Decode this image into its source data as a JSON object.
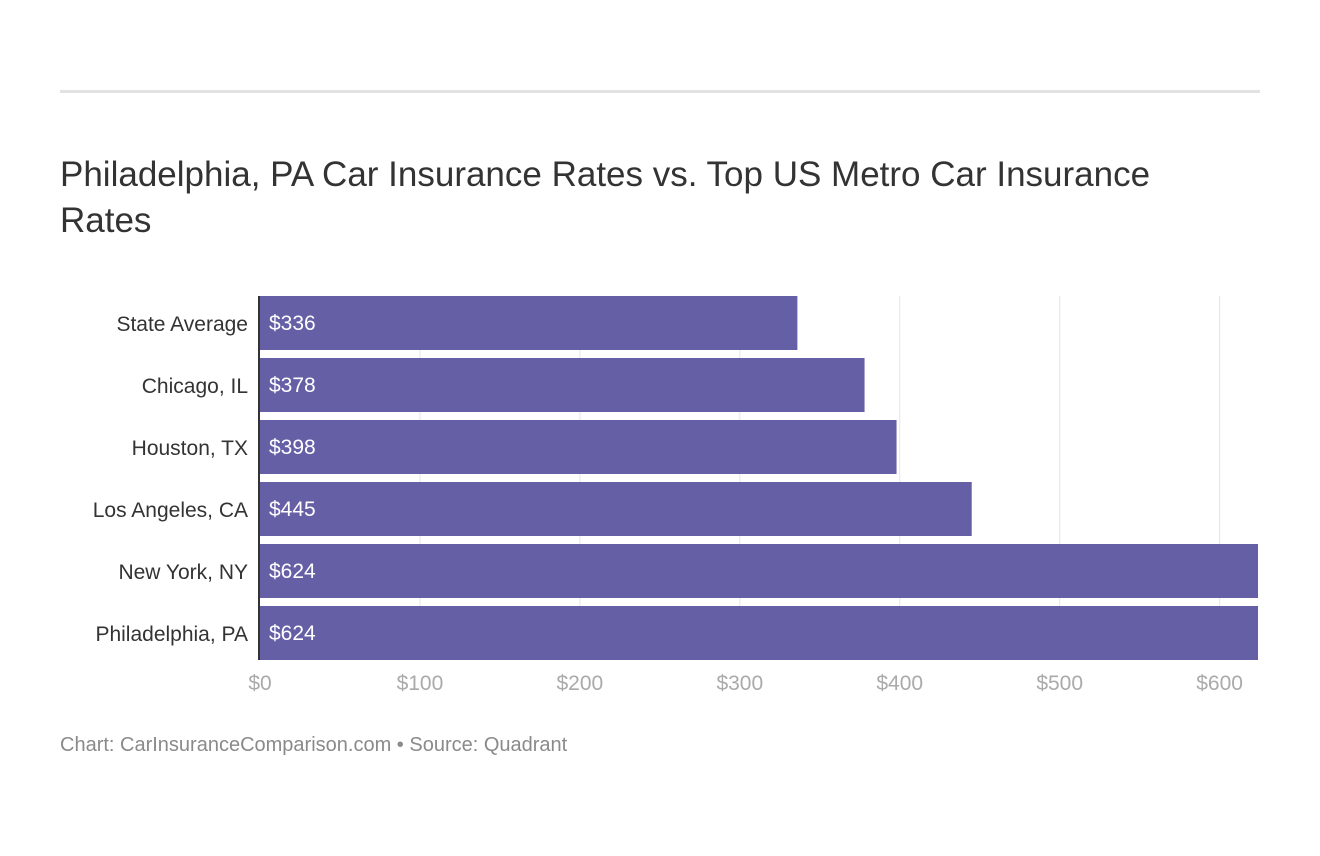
{
  "title": "Philadelphia, PA Car Insurance Rates vs. Top US Metro Car Insurance Rates",
  "footer": "Chart: CarInsuranceComparison.com • Source: Quadrant",
  "colors": {
    "bar": "#655fa6",
    "grid": "#e6e6e6",
    "axis": "#333333",
    "tick": "#aaaaaa"
  },
  "chart_data": {
    "type": "bar",
    "orientation": "horizontal",
    "title": "Philadelphia, PA Car Insurance Rates vs. Top US Metro Car Insurance Rates",
    "categories": [
      "State Average",
      "Chicago, IL",
      "Houston, TX",
      "Los Angeles, CA",
      "New York, NY",
      "Philadelphia, PA"
    ],
    "values": [
      336,
      378,
      398,
      445,
      624,
      624
    ],
    "value_labels": [
      "$336",
      "$378",
      "$398",
      "$445",
      "$624",
      "$624"
    ],
    "xticks": [
      0,
      100,
      200,
      300,
      400,
      500,
      600
    ],
    "xtick_labels": [
      "$0",
      "$100",
      "$200",
      "$300",
      "$400",
      "$500",
      "$600"
    ],
    "xlim": [
      0,
      624
    ],
    "grid": true,
    "xlabel": "",
    "ylabel": ""
  }
}
